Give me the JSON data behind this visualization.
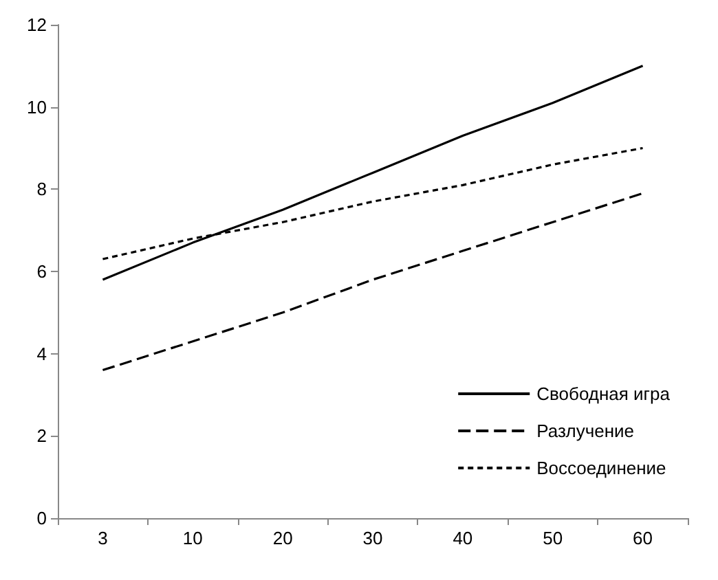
{
  "chart_data": {
    "type": "line",
    "categories": [
      "3",
      "10",
      "20",
      "30",
      "40",
      "50",
      "60"
    ],
    "series": [
      {
        "name": "Свободная игра",
        "color": "#000000",
        "line_style": "solid",
        "values": [
          5.8,
          6.7,
          7.5,
          8.4,
          9.3,
          10.1,
          11
        ]
      },
      {
        "name": "Разлучение",
        "color": "#000000",
        "line_style": "dashed",
        "values": [
          3.6,
          4.3,
          5.0,
          5.8,
          6.5,
          7.2,
          7.9
        ]
      },
      {
        "name": "Воссоединение",
        "color": "#000000",
        "line_style": "dotted",
        "values": [
          6.3,
          6.8,
          7.2,
          7.7,
          8.1,
          8.6,
          9.0
        ]
      }
    ],
    "ylim": [
      0,
      12
    ],
    "yticks": [
      0,
      2,
      4,
      6,
      8,
      10,
      12
    ],
    "grid": false,
    "legend": "bottom right",
    "marker": "none"
  }
}
